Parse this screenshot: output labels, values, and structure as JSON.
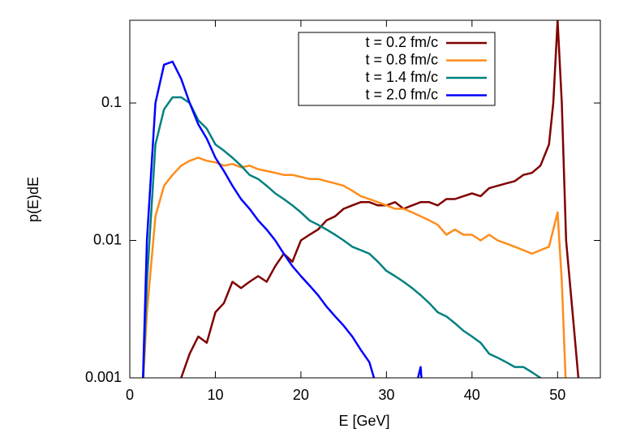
{
  "chart_data": {
    "type": "line",
    "x_label": "E [GeV]",
    "y_label": "p(E)dE",
    "log_y": true,
    "xlim": [
      0,
      55
    ],
    "ylim": [
      0.001,
      0.4
    ],
    "xticks": [
      0,
      10,
      20,
      30,
      40,
      50
    ],
    "yticks": [
      0.001,
      0.01,
      0.1
    ],
    "legend": "top-right",
    "series": [
      {
        "name": "t = 0.2 fm/c",
        "color": "#800000",
        "x": [
          6,
          7,
          8,
          9,
          10,
          11,
          12,
          13,
          14,
          15,
          16,
          17,
          18,
          19,
          20,
          21,
          22,
          23,
          24,
          25,
          26,
          27,
          28,
          29,
          30,
          31,
          32,
          33,
          34,
          35,
          36,
          37,
          38,
          39,
          40,
          41,
          42,
          43,
          44,
          45,
          46,
          47,
          48,
          49,
          49.5,
          50,
          50.5,
          51,
          52,
          52.5
        ],
        "values": [
          0.001,
          0.0015,
          0.002,
          0.0018,
          0.003,
          0.0035,
          0.005,
          0.0045,
          0.005,
          0.0055,
          0.005,
          0.0065,
          0.008,
          0.007,
          0.01,
          0.011,
          0.012,
          0.014,
          0.015,
          0.017,
          0.018,
          0.019,
          0.019,
          0.018,
          0.018,
          0.019,
          0.017,
          0.018,
          0.019,
          0.019,
          0.018,
          0.02,
          0.02,
          0.021,
          0.022,
          0.021,
          0.024,
          0.025,
          0.026,
          0.027,
          0.03,
          0.031,
          0.035,
          0.05,
          0.1,
          0.4,
          0.1,
          0.01,
          0.002,
          0.0009
        ]
      },
      {
        "name": "t = 0.8 fm/c",
        "color": "#ff8c1a",
        "x": [
          1.5,
          2,
          3,
          4,
          5,
          6,
          7,
          8,
          9,
          10,
          11,
          12,
          13,
          14,
          15,
          16,
          17,
          18,
          19,
          20,
          21,
          22,
          23,
          24,
          25,
          26,
          27,
          28,
          29,
          30,
          31,
          32,
          33,
          34,
          35,
          36,
          37,
          38,
          39,
          40,
          41,
          42,
          43,
          44,
          45,
          46,
          47,
          48,
          49,
          50,
          50.5,
          51
        ],
        "values": [
          0.0008,
          0.003,
          0.015,
          0.025,
          0.03,
          0.035,
          0.038,
          0.04,
          0.038,
          0.037,
          0.035,
          0.036,
          0.034,
          0.035,
          0.033,
          0.032,
          0.031,
          0.03,
          0.03,
          0.029,
          0.028,
          0.028,
          0.027,
          0.026,
          0.025,
          0.023,
          0.021,
          0.02,
          0.019,
          0.018,
          0.017,
          0.017,
          0.016,
          0.015,
          0.014,
          0.013,
          0.011,
          0.012,
          0.011,
          0.011,
          0.01,
          0.011,
          0.01,
          0.0095,
          0.009,
          0.0085,
          0.008,
          0.0085,
          0.009,
          0.016,
          0.005,
          0.0008
        ]
      },
      {
        "name": "t = 1.4 fm/c",
        "color": "#008080",
        "x": [
          1.5,
          2,
          3,
          4,
          5,
          6,
          7,
          8,
          9,
          10,
          11,
          12,
          13,
          14,
          15,
          16,
          17,
          18,
          19,
          20,
          21,
          22,
          23,
          24,
          25,
          26,
          27,
          28,
          29,
          30,
          31,
          32,
          33,
          34,
          35,
          36,
          37,
          38,
          39,
          40,
          41,
          42,
          43,
          44,
          45,
          46,
          47,
          48,
          49
        ],
        "values": [
          0.0008,
          0.005,
          0.05,
          0.09,
          0.11,
          0.11,
          0.1,
          0.075,
          0.065,
          0.05,
          0.045,
          0.04,
          0.035,
          0.03,
          0.028,
          0.025,
          0.022,
          0.02,
          0.018,
          0.016,
          0.014,
          0.013,
          0.012,
          0.011,
          0.01,
          0.009,
          0.0085,
          0.008,
          0.007,
          0.006,
          0.0055,
          0.005,
          0.0045,
          0.004,
          0.0035,
          0.003,
          0.0028,
          0.0025,
          0.0022,
          0.002,
          0.0018,
          0.0015,
          0.0014,
          0.0013,
          0.0012,
          0.0012,
          0.0011,
          0.001,
          0.0008
        ]
      },
      {
        "name": "t = 2.0 fm/c",
        "color": "#0000ff",
        "x": [
          1.5,
          2,
          3,
          4,
          5,
          6,
          7,
          8,
          9,
          10,
          11,
          12,
          13,
          14,
          15,
          16,
          17,
          18,
          19,
          20,
          21,
          22,
          23,
          24,
          25,
          26,
          27,
          28,
          29,
          33,
          33.5,
          34,
          34.2
        ],
        "values": [
          0.0008,
          0.01,
          0.1,
          0.19,
          0.2,
          0.15,
          0.1,
          0.07,
          0.055,
          0.04,
          0.032,
          0.025,
          0.02,
          0.017,
          0.014,
          0.012,
          0.01,
          0.008,
          0.0065,
          0.0055,
          0.0047,
          0.004,
          0.0033,
          0.0028,
          0.0024,
          0.002,
          0.0016,
          0.0013,
          0.0008,
          null,
          0.0009,
          0.0012,
          0.0008
        ]
      }
    ]
  }
}
